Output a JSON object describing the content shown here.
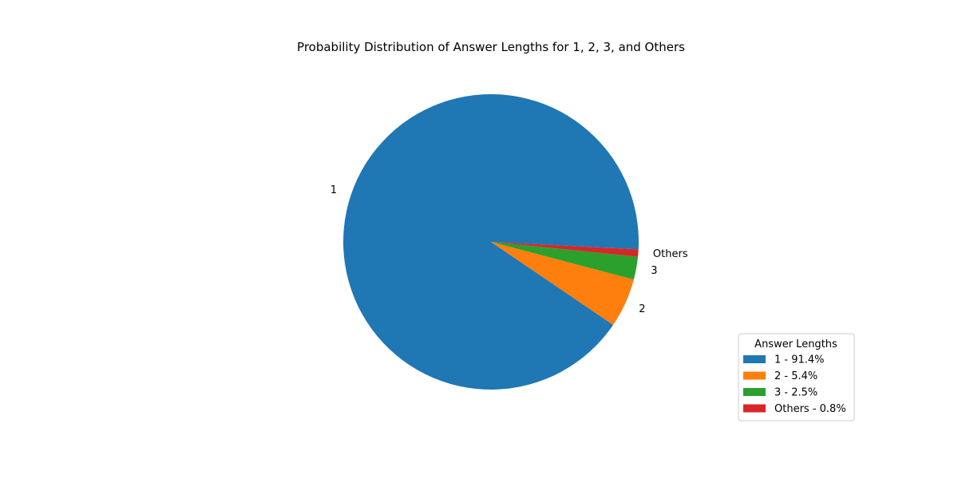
{
  "chart_data": {
    "type": "pie",
    "title": "Probability Distribution of Answer Lengths for 1, 2, 3, and Others",
    "slices": [
      {
        "label": "1",
        "value": 91.4,
        "color": "#1f77b4",
        "legend": "1 - 91.4%"
      },
      {
        "label": "2",
        "value": 5.4,
        "color": "#ff7f0e",
        "legend": "2 - 5.4%"
      },
      {
        "label": "3",
        "value": 2.5,
        "color": "#2ca02c",
        "legend": "3 - 2.5%"
      },
      {
        "label": "Others",
        "value": 0.8,
        "color": "#d62728",
        "legend": "Others - 0.8%"
      }
    ],
    "legend": {
      "title": "Answer Lengths",
      "placement": "bottom-right"
    }
  }
}
